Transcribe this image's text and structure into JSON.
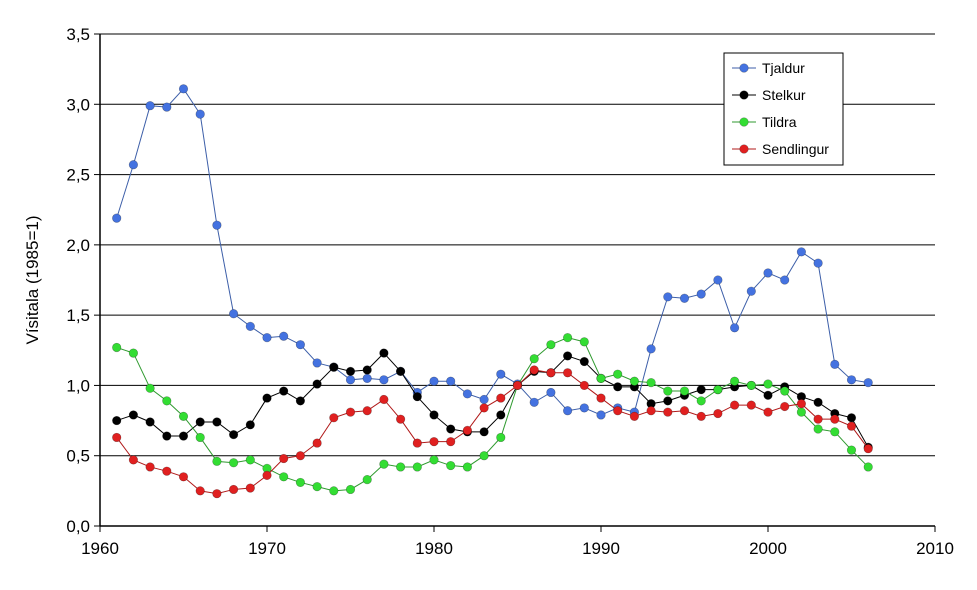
{
  "chart_data": {
    "type": "line",
    "ylabel": "Vísitala (1985=1)",
    "xlim": [
      1960,
      2010
    ],
    "ylim": [
      0,
      3.5
    ],
    "x_ticks": [
      1960,
      1970,
      1980,
      1990,
      2000,
      2010
    ],
    "x_tick_labels": [
      "1960",
      "1970",
      "1980",
      "1990",
      "2000",
      "2010"
    ],
    "y_ticks": [
      0,
      0.5,
      1.0,
      1.5,
      2.0,
      2.5,
      3.0,
      3.5
    ],
    "y_tick_labels": [
      "0,0",
      "0,5",
      "1,0",
      "1,5",
      "2,0",
      "2,5",
      "3,0",
      "3,5"
    ],
    "grid": "horizontal",
    "legend_position": "top-right",
    "x": [
      1961,
      1962,
      1963,
      1964,
      1965,
      1966,
      1967,
      1968,
      1969,
      1970,
      1971,
      1972,
      1973,
      1974,
      1975,
      1976,
      1977,
      1978,
      1979,
      1980,
      1981,
      1982,
      1983,
      1984,
      1985,
      1986,
      1987,
      1988,
      1989,
      1990,
      1991,
      1992,
      1993,
      1994,
      1995,
      1996,
      1997,
      1998,
      1999,
      2000,
      2001,
      2002,
      2003,
      2004,
      2005,
      2006
    ],
    "series": [
      {
        "name": "Tjaldur",
        "color": "#4472e0",
        "line_color": "#3c5ea8",
        "values": [
          2.19,
          2.57,
          2.99,
          2.98,
          3.11,
          2.93,
          2.14,
          1.51,
          1.42,
          1.34,
          1.35,
          1.29,
          1.16,
          1.13,
          1.04,
          1.05,
          1.04,
          1.1,
          0.95,
          1.03,
          1.03,
          0.94,
          0.9,
          1.08,
          1.01,
          0.88,
          0.95,
          0.82,
          0.84,
          0.79,
          0.84,
          0.81,
          1.26,
          1.63,
          1.62,
          1.65,
          1.75,
          1.41,
          1.67,
          1.8,
          1.75,
          1.95,
          1.87,
          1.15,
          1.04,
          1.02
        ]
      },
      {
        "name": "Stelkur",
        "color": "#000000",
        "line_color": "#000000",
        "values": [
          0.75,
          0.79,
          0.74,
          0.64,
          0.64,
          0.74,
          0.74,
          0.65,
          0.72,
          0.91,
          0.96,
          0.89,
          1.01,
          1.13,
          1.1,
          1.11,
          1.23,
          1.1,
          0.92,
          0.79,
          0.69,
          0.67,
          0.67,
          0.79,
          1.0,
          1.1,
          1.09,
          1.21,
          1.17,
          1.05,
          0.99,
          0.99,
          0.87,
          0.89,
          0.93,
          0.97,
          0.97,
          0.99,
          1.0,
          0.93,
          0.99,
          0.92,
          0.88,
          0.8,
          0.77,
          0.56
        ]
      },
      {
        "name": "Tildra",
        "color": "#33dd33",
        "line_color": "#2f9a2f",
        "values": [
          1.27,
          1.23,
          0.98,
          0.89,
          0.78,
          0.63,
          0.46,
          0.45,
          0.47,
          0.41,
          0.35,
          0.31,
          0.28,
          0.25,
          0.26,
          0.33,
          0.44,
          0.42,
          0.42,
          0.47,
          0.43,
          0.42,
          0.5,
          0.63,
          1.0,
          1.19,
          1.29,
          1.34,
          1.31,
          1.05,
          1.08,
          1.03,
          1.02,
          0.96,
          0.96,
          0.89,
          0.97,
          1.03,
          1.0,
          1.01,
          0.96,
          0.81,
          0.69,
          0.67,
          0.54,
          0.42
        ]
      },
      {
        "name": "Sendlingur",
        "color": "#e02020",
        "line_color": "#b01818",
        "values": [
          0.63,
          0.47,
          0.42,
          0.39,
          0.35,
          0.25,
          0.23,
          0.26,
          0.27,
          0.36,
          0.48,
          0.5,
          0.59,
          0.77,
          0.81,
          0.82,
          0.9,
          0.76,
          0.59,
          0.6,
          0.6,
          0.68,
          0.84,
          0.91,
          1.0,
          1.11,
          1.09,
          1.09,
          1.0,
          0.91,
          0.82,
          0.78,
          0.82,
          0.81,
          0.82,
          0.78,
          0.8,
          0.86,
          0.86,
          0.81,
          0.85,
          0.87,
          0.76,
          0.76,
          0.71,
          0.55
        ]
      }
    ]
  }
}
